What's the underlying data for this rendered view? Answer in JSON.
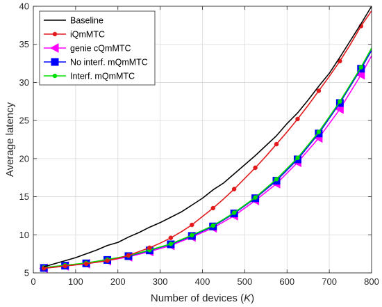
{
  "chart_data": {
    "type": "line",
    "title": "",
    "xlabel": "Number of devices (K)",
    "xlabel_parts": [
      "Number of devices (",
      "K",
      ")"
    ],
    "ylabel": "Average latency",
    "xlim": [
      0,
      800
    ],
    "ylim": [
      5,
      40
    ],
    "xticks": [
      0,
      100,
      200,
      300,
      400,
      500,
      600,
      700,
      800
    ],
    "yticks": [
      5,
      10,
      15,
      20,
      25,
      30,
      35,
      40
    ],
    "grid": true,
    "legend_position": "top-left",
    "series": [
      {
        "name": "Baseline",
        "color": "#000000",
        "marker": "none",
        "x": [
          25,
          50,
          75,
          100,
          125,
          150,
          175,
          200,
          225,
          250,
          275,
          300,
          325,
          350,
          375,
          400,
          425,
          450,
          475,
          500,
          525,
          550,
          575,
          600,
          625,
          650,
          675,
          700,
          725,
          750,
          775,
          800
        ],
        "y": [
          5.8,
          6.2,
          6.6,
          7.0,
          7.5,
          8.0,
          8.6,
          9.0,
          9.7,
          10.3,
          11.0,
          11.6,
          12.3,
          13.0,
          13.9,
          14.8,
          15.9,
          16.8,
          18.0,
          19.2,
          20.4,
          21.7,
          23.0,
          24.6,
          26.0,
          27.7,
          29.5,
          31.2,
          33.3,
          35.5,
          37.7,
          40.0
        ],
        "marker_x": [],
        "marker_y": []
      },
      {
        "name": "iQmMTC",
        "color": "#e31a1c",
        "marker": "dot",
        "x": [
          25,
          50,
          75,
          100,
          125,
          150,
          175,
          200,
          225,
          250,
          275,
          300,
          325,
          350,
          375,
          400,
          425,
          450,
          475,
          500,
          525,
          550,
          575,
          600,
          625,
          650,
          675,
          700,
          725,
          750,
          775,
          800
        ],
        "y": [
          5.6,
          5.75,
          5.9,
          6.05,
          6.2,
          6.4,
          6.6,
          6.9,
          7.3,
          7.8,
          8.3,
          8.9,
          9.6,
          10.4,
          11.3,
          12.4,
          13.5,
          14.7,
          16.0,
          17.4,
          18.8,
          20.3,
          21.9,
          23.5,
          25.2,
          27.0,
          28.9,
          30.8,
          32.8,
          35.0,
          37.4,
          39.4
        ],
        "marker_x": [
          25,
          75,
          125,
          175,
          225,
          275,
          325,
          375,
          425,
          475,
          525,
          575,
          625,
          675,
          725,
          775
        ],
        "marker_y": [
          5.6,
          5.9,
          6.2,
          6.6,
          7.3,
          8.3,
          9.6,
          11.3,
          13.5,
          16.0,
          18.8,
          21.9,
          25.2,
          28.9,
          32.8,
          37.4
        ]
      },
      {
        "name": "genie cQmMTC",
        "color": "#ff00ff",
        "marker": "triangle-left",
        "x": [
          25,
          75,
          125,
          175,
          225,
          275,
          325,
          375,
          425,
          475,
          525,
          575,
          625,
          675,
          725,
          775,
          800
        ],
        "y": [
          5.6,
          5.9,
          6.2,
          6.6,
          7.1,
          7.8,
          8.6,
          9.7,
          10.9,
          12.5,
          14.5,
          16.7,
          19.5,
          22.7,
          26.5,
          31.0,
          33.5
        ],
        "marker_x": [
          25,
          75,
          125,
          175,
          225,
          275,
          325,
          375,
          425,
          475,
          525,
          575,
          625,
          675,
          725,
          775
        ],
        "marker_y": [
          5.6,
          5.9,
          6.2,
          6.6,
          7.1,
          7.8,
          8.6,
          9.7,
          10.9,
          12.5,
          14.5,
          16.7,
          19.5,
          22.7,
          26.5,
          31.0
        ]
      },
      {
        "name": "No interf. mQmMTC",
        "color": "#0000ff",
        "marker": "square",
        "x": [
          25,
          75,
          125,
          175,
          225,
          275,
          325,
          375,
          425,
          475,
          525,
          575,
          625,
          675,
          725,
          775,
          800
        ],
        "y": [
          5.65,
          5.95,
          6.25,
          6.7,
          7.2,
          7.95,
          8.75,
          9.85,
          11.1,
          12.8,
          14.8,
          17.1,
          19.9,
          23.3,
          27.3,
          31.8,
          34.2
        ],
        "marker_x": [
          25,
          75,
          125,
          175,
          225,
          275,
          325,
          375,
          425,
          475,
          525,
          575,
          625,
          675,
          725,
          775
        ],
        "marker_y": [
          5.65,
          5.95,
          6.25,
          6.7,
          7.2,
          7.95,
          8.75,
          9.85,
          11.1,
          12.8,
          14.8,
          17.1,
          19.9,
          23.3,
          27.3,
          31.8
        ]
      },
      {
        "name": "Interf. mQmMTC",
        "color": "#00e000",
        "marker": "dot",
        "x": [
          25,
          75,
          125,
          175,
          225,
          275,
          325,
          375,
          425,
          475,
          525,
          575,
          625,
          675,
          725,
          775,
          800
        ],
        "y": [
          5.7,
          6.0,
          6.3,
          6.75,
          7.25,
          8.0,
          8.8,
          9.95,
          11.2,
          12.9,
          14.9,
          17.3,
          20.1,
          23.5,
          27.5,
          32.0,
          34.5
        ],
        "marker_x": [
          25,
          75,
          125,
          175,
          225,
          275,
          325,
          375,
          425,
          475,
          525,
          575,
          625,
          675,
          725,
          775
        ],
        "marker_y": [
          5.7,
          6.0,
          6.3,
          6.75,
          7.25,
          8.0,
          8.8,
          9.95,
          11.2,
          12.9,
          14.9,
          17.3,
          20.1,
          23.5,
          27.5,
          32.0
        ]
      }
    ]
  }
}
